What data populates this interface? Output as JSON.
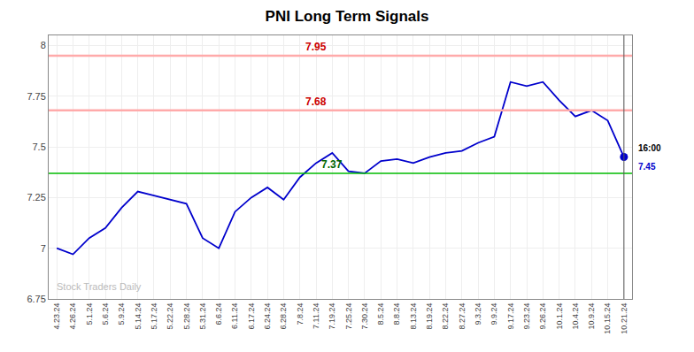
{
  "chart_data": {
    "type": "line",
    "title": "PNI Long Term Signals",
    "categories": [
      "4.23.24",
      "4.26.24",
      "5.1.24",
      "5.6.24",
      "5.9.24",
      "5.14.24",
      "5.17.24",
      "5.22.24",
      "5.28.24",
      "5.31.24",
      "6.6.24",
      "6.11.24",
      "6.17.24",
      "6.24.24",
      "6.28.24",
      "7.8.24",
      "7.11.24",
      "7.19.24",
      "7.25.24",
      "7.30.24",
      "8.5.24",
      "8.8.24",
      "8.13.24",
      "8.19.24",
      "8.22.24",
      "8.27.24",
      "9.3.24",
      "9.9.24",
      "9.17.24",
      "9.23.24",
      "9.26.24",
      "10.1.24",
      "10.4.24",
      "10.9.24",
      "10.15.24",
      "10.21.24"
    ],
    "values": [
      7.0,
      6.97,
      7.05,
      7.1,
      7.2,
      7.28,
      7.26,
      7.24,
      7.22,
      7.05,
      7.0,
      7.18,
      7.25,
      7.3,
      7.24,
      7.35,
      7.42,
      7.47,
      7.38,
      7.37,
      7.43,
      7.44,
      7.42,
      7.45,
      7.47,
      7.48,
      7.52,
      7.55,
      7.82,
      7.8,
      7.82,
      7.73,
      7.65,
      7.68,
      7.63,
      7.45
    ],
    "color": "#0000cc",
    "ylim": [
      6.75,
      8.05
    ],
    "yticks": [
      6.75,
      7.0,
      7.25,
      7.5,
      7.75,
      8.0
    ],
    "grid": true,
    "hlines": [
      {
        "value": 7.95,
        "label": "7.95",
        "color": "#ffaaaa",
        "label_color": "#cc0000"
      },
      {
        "value": 7.68,
        "label": "7.68",
        "color": "#ffaaaa",
        "label_color": "#cc0000"
      },
      {
        "value": 7.37,
        "label": "7.37",
        "color": "#00bb00",
        "label_color": "#006600"
      }
    ],
    "end_point": {
      "value": 7.45,
      "time": "16:00",
      "color": "#0000cc",
      "vline_color": "#555555"
    },
    "annotations": [
      {
        "text": "Stock Traders Daily",
        "color": "#bbbbbb"
      }
    ]
  }
}
